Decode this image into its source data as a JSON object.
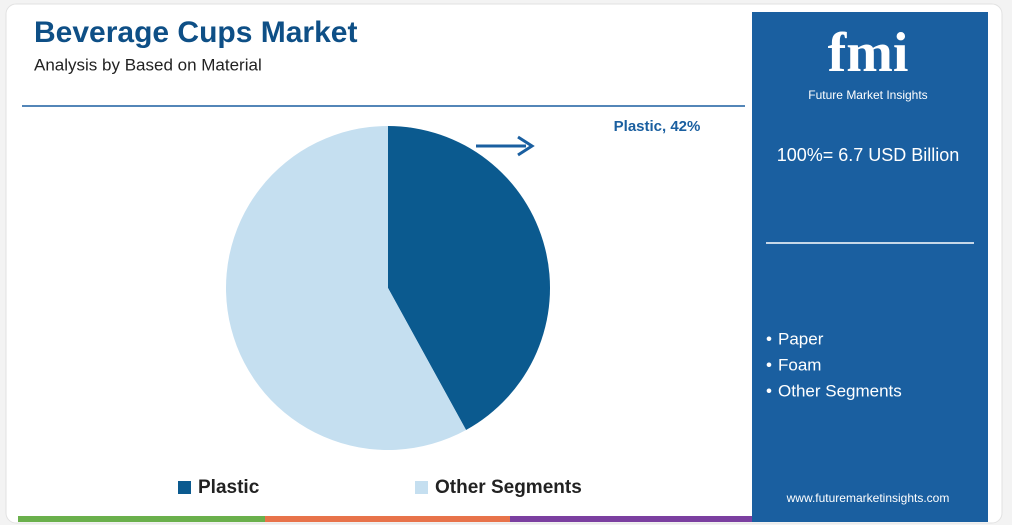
{
  "chart_data": {
    "type": "pie",
    "title": "Beverage Cups Market",
    "subtitle": "Analysis by Based on Material",
    "categories": [
      "Plastic",
      "Other Segments"
    ],
    "values": [
      42,
      58
    ],
    "value_labels": [
      "Plastic, 42%",
      null
    ],
    "colors": [
      "#0b5a8f",
      "#c5dff0"
    ],
    "logo": "fmi",
    "logo_caption": "Future Market Insights",
    "total_label": "100%= 6.7 USD Billion",
    "other_segments": [
      "Paper",
      "Foam",
      "Other Segments"
    ],
    "website": "www.futuremarketinsights.com"
  }
}
